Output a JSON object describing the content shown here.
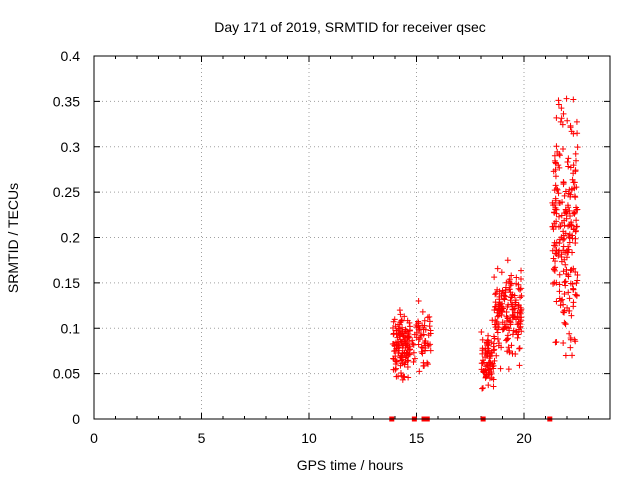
{
  "chart_data": {
    "type": "scatter",
    "title": "Day 171 of 2019, SRMTID for receiver qsec",
    "xlabel": "GPS time / hours",
    "ylabel": "SRMTID / TECUs",
    "xlim": [
      0,
      24
    ],
    "ylim": [
      0,
      0.4
    ],
    "xticks": [
      0,
      5,
      10,
      15,
      20
    ],
    "xtick_labels": [
      "0",
      "5",
      "10",
      "15",
      "20"
    ],
    "yticks": [
      0,
      0.05,
      0.1,
      0.15,
      0.2,
      0.25,
      0.3,
      0.35,
      0.4
    ],
    "ytick_labels": [
      "0",
      "0.05",
      "0.1",
      "0.15",
      "0.2",
      "0.25",
      "0.3",
      "0.35",
      "0.4"
    ],
    "grid": true,
    "legend": "none",
    "series_color": "#ff0000",
    "marker": "+",
    "clusters": [
      {
        "x_range": [
          13.9,
          14.7
        ],
        "y_min": 0.04,
        "y_max": 0.12,
        "count": 130
      },
      {
        "x_range": [
          14.8,
          15.7
        ],
        "y_min": 0.04,
        "y_max": 0.13,
        "count": 60
      },
      {
        "x_range": [
          18.0,
          18.6
        ],
        "y_min": 0.025,
        "y_max": 0.11,
        "count": 80
      },
      {
        "x_range": [
          18.6,
          19.9
        ],
        "y_min": 0.055,
        "y_max": 0.175,
        "count": 170
      },
      {
        "x_range": [
          21.3,
          22.5
        ],
        "y_min": 0.07,
        "y_max": 0.355,
        "count": 230
      }
    ],
    "baseline_markers_x": [
      13.85,
      14.9,
      15.35,
      15.5,
      18.1,
      21.2
    ],
    "baseline_markers_y": 0
  }
}
